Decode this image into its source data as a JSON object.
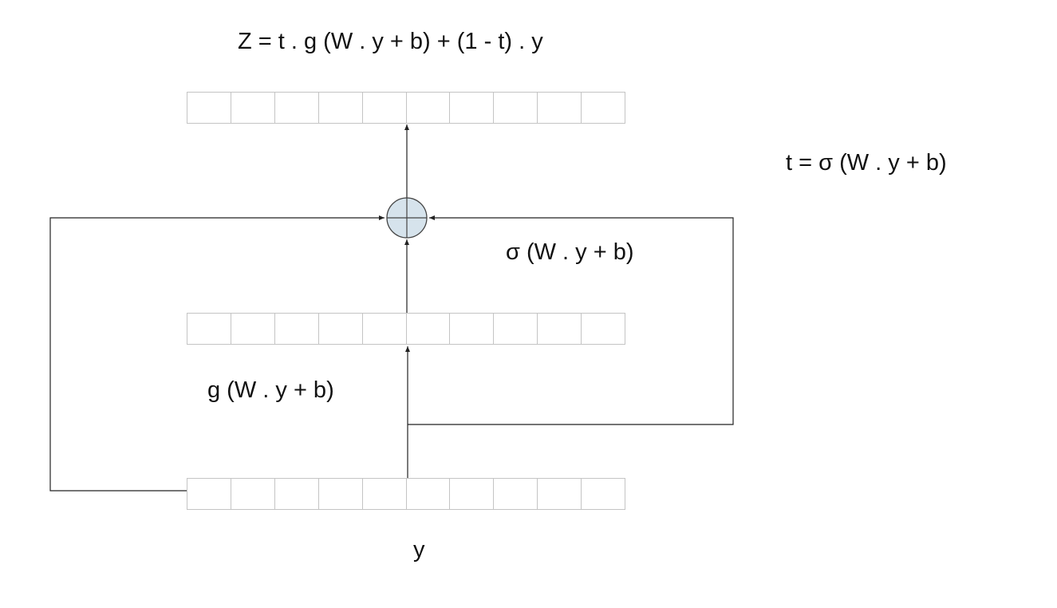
{
  "equations": {
    "output": "Z = t . g (W . y + b) + (1 - t) . y",
    "gate": "t = σ (W . y + b)",
    "sigmoid_branch": "σ (W . y + b)",
    "transform_branch": "g (W . y + b)",
    "input": "y"
  },
  "vectors": {
    "top": {
      "cells": 10
    },
    "middle": {
      "cells": 10
    },
    "bottom": {
      "cells": 10
    }
  },
  "colors": {
    "line": "#222222",
    "cell_border": "#c4c4c4",
    "combine_node_fill": "#d6e3ec",
    "combine_node_stroke": "#444444"
  }
}
